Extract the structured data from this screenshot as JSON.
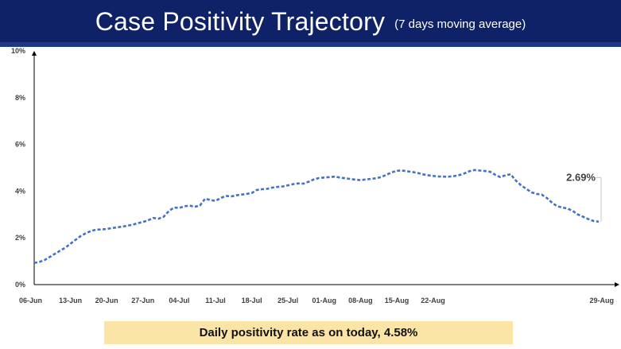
{
  "header": {
    "title": "Case Positivity Trajectory",
    "subtitle": "(7 days moving average)"
  },
  "footer": {
    "text": "Daily positivity rate as on today, 4.58%"
  },
  "annotation": {
    "label": "2.69%"
  },
  "colors": {
    "banner": "#0f2167",
    "banner_bar": "#1c3887",
    "line": "#4472c4",
    "footer_bg": "#fbe5a6"
  },
  "chart_data": {
    "type": "line",
    "title": "Case Positivity Trajectory",
    "xlabel": "",
    "ylabel": "",
    "line_style": "dashed",
    "grid": false,
    "x_ticks": [
      "06-Jun",
      "13-Jun",
      "20-Jun",
      "27-Jun",
      "04-Jul",
      "11-Jul",
      "18-Jul",
      "25-Jul",
      "01-Aug",
      "08-Aug",
      "15-Aug",
      "22-Aug",
      "29-Aug"
    ],
    "y_ticks": [
      "0%",
      "2%",
      "4%",
      "6%",
      "8%",
      "10%"
    ],
    "y_tick_values": [
      0,
      2,
      4,
      6,
      8,
      10
    ],
    "ylim": [
      0,
      10
    ],
    "x_start": "06-Jun",
    "x_end": "29-Aug",
    "series": [
      {
        "values": [
          0.93,
          0.97,
          1.05,
          1.18,
          1.32,
          1.45,
          1.58,
          1.75,
          1.92,
          2.08,
          2.2,
          2.3,
          2.35,
          2.36,
          2.38,
          2.42,
          2.45,
          2.48,
          2.52,
          2.56,
          2.63,
          2.68,
          2.75,
          2.85,
          2.82,
          2.9,
          3.15,
          3.3,
          3.28,
          3.35,
          3.38,
          3.33,
          3.38,
          3.68,
          3.62,
          3.58,
          3.7,
          3.8,
          3.77,
          3.82,
          3.85,
          3.88,
          3.92,
          4.05,
          4.08,
          4.1,
          4.15,
          4.18,
          4.2,
          4.25,
          4.3,
          4.33,
          4.32,
          4.4,
          4.5,
          4.56,
          4.58,
          4.6,
          4.62,
          4.58,
          4.55,
          4.52,
          4.49,
          4.47,
          4.5,
          4.52,
          4.55,
          4.6,
          4.7,
          4.8,
          4.87,
          4.88,
          4.85,
          4.82,
          4.78,
          4.72,
          4.68,
          4.65,
          4.63,
          4.62,
          4.62,
          4.64,
          4.68,
          4.75,
          4.85,
          4.9,
          4.88,
          4.86,
          4.83,
          4.7,
          4.6,
          4.68,
          4.72,
          4.45,
          4.25,
          4.1,
          3.95,
          3.88,
          3.85,
          3.7,
          3.5,
          3.35,
          3.3,
          3.25,
          3.15,
          3.0,
          2.9,
          2.8,
          2.72,
          2.69
        ]
      }
    ],
    "annotations": [
      {
        "label": "2.69%",
        "value": 2.69,
        "range": [
          2.69,
          4.58
        ]
      }
    ]
  }
}
